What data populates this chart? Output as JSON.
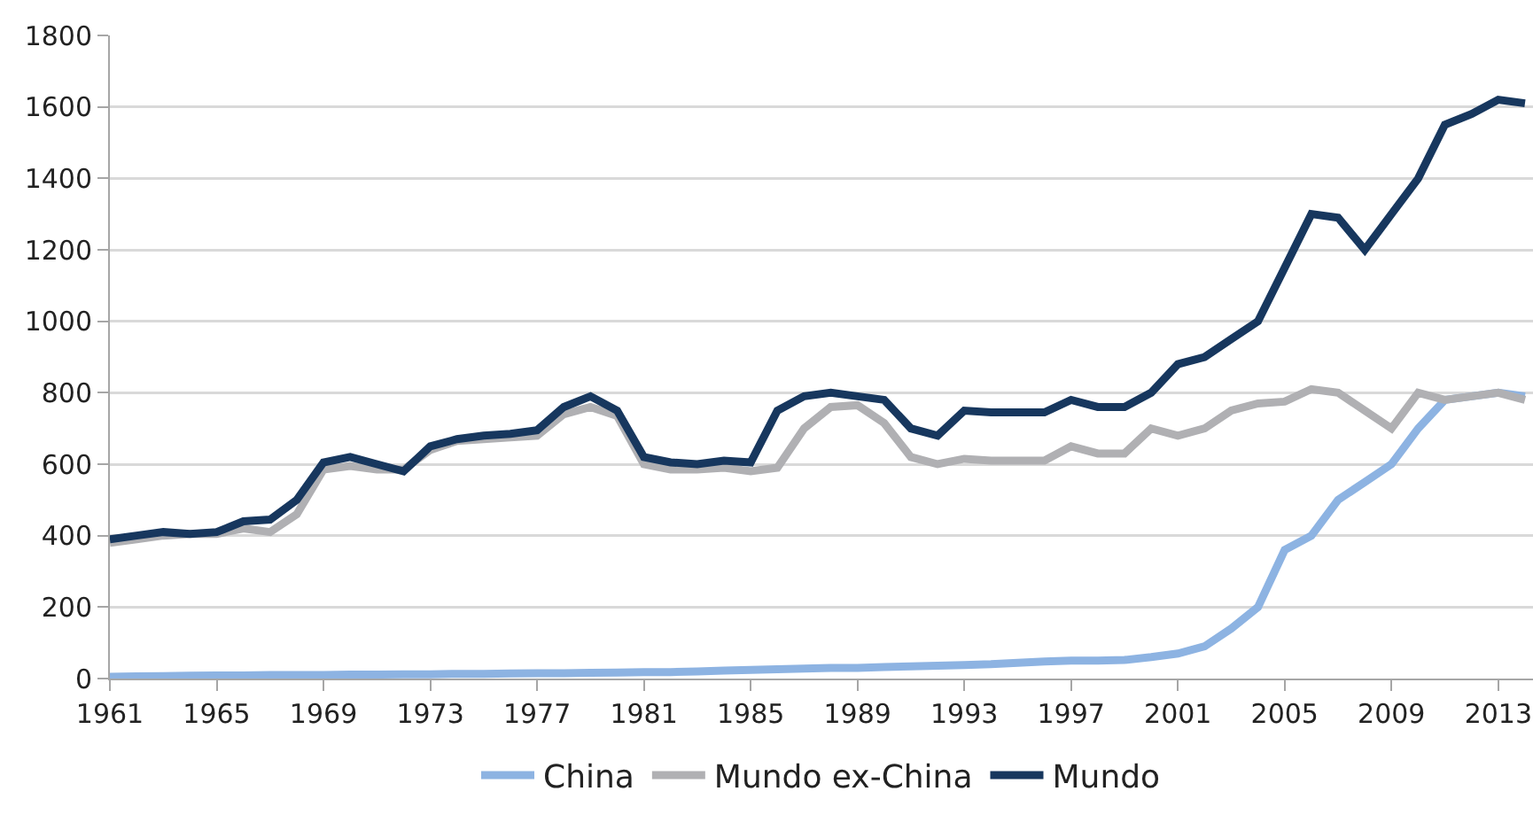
{
  "chart_data": {
    "type": "line",
    "x": [
      1961,
      1962,
      1963,
      1964,
      1965,
      1966,
      1967,
      1968,
      1969,
      1970,
      1971,
      1972,
      1973,
      1974,
      1975,
      1976,
      1977,
      1978,
      1979,
      1980,
      1981,
      1982,
      1983,
      1984,
      1985,
      1986,
      1987,
      1988,
      1989,
      1990,
      1991,
      1992,
      1993,
      1994,
      1995,
      1996,
      1997,
      1998,
      1999,
      2000,
      2001,
      2002,
      2003,
      2004,
      2005,
      2006,
      2007,
      2008,
      2009,
      2010,
      2011,
      2012,
      2013,
      2014
    ],
    "series": [
      {
        "name": "China",
        "color": "#8db3e2",
        "values": [
          5,
          6,
          7,
          8,
          9,
          9,
          10,
          10,
          10,
          11,
          11,
          12,
          12,
          13,
          13,
          14,
          15,
          15,
          16,
          17,
          18,
          18,
          20,
          22,
          24,
          26,
          28,
          30,
          30,
          32,
          34,
          36,
          38,
          40,
          44,
          48,
          50,
          50,
          52,
          60,
          70,
          90,
          140,
          200,
          360,
          400,
          500,
          550,
          600,
          700,
          780,
          790,
          800,
          790
        ]
      },
      {
        "name": "Mundo ex-China",
        "color": "#b0b0b3",
        "values": [
          380,
          390,
          400,
          405,
          405,
          420,
          410,
          460,
          585,
          595,
          585,
          585,
          640,
          665,
          670,
          675,
          680,
          740,
          760,
          735,
          600,
          585,
          585,
          590,
          580,
          590,
          700,
          760,
          765,
          715,
          620,
          600,
          615,
          610,
          610,
          610,
          650,
          630,
          630,
          700,
          680,
          700,
          750,
          770,
          775,
          810,
          800,
          750,
          700,
          800,
          780,
          790,
          800,
          780
        ]
      },
      {
        "name": "Mundo",
        "color": "#17375e",
        "values": [
          390,
          400,
          410,
          405,
          410,
          440,
          445,
          500,
          605,
          620,
          600,
          580,
          650,
          670,
          680,
          685,
          695,
          760,
          790,
          750,
          620,
          605,
          600,
          610,
          605,
          750,
          790,
          800,
          790,
          780,
          700,
          680,
          750,
          745,
          745,
          745,
          780,
          760,
          760,
          800,
          880,
          900,
          950,
          1000,
          1150,
          1300,
          1290,
          1200,
          1300,
          1400,
          1550,
          1580,
          1620,
          1610
        ]
      }
    ],
    "xlim": [
      1961,
      2014.3
    ],
    "xticks": [
      1961,
      1965,
      1969,
      1973,
      1977,
      1981,
      1985,
      1989,
      1993,
      1997,
      2001,
      2005,
      2009,
      2013
    ],
    "ylim": [
      0,
      1800
    ],
    "yticks": [
      0,
      200,
      400,
      600,
      800,
      1000,
      1200,
      1400,
      1600,
      1800
    ],
    "grid": "y",
    "legend": "bottom",
    "marker": "none",
    "line_style": "solid"
  }
}
